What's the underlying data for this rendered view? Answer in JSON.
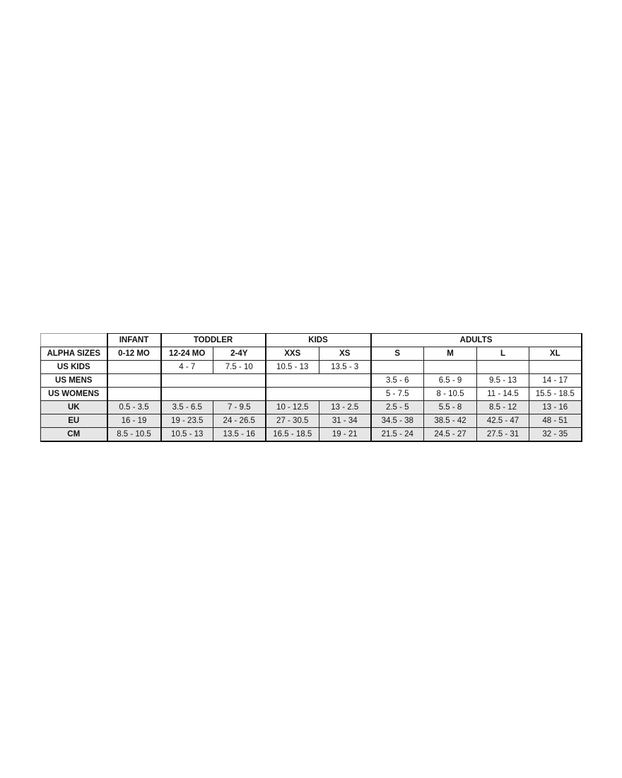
{
  "size_chart": {
    "groups": [
      {
        "label": "",
        "span": 1
      },
      {
        "label": "INFANT",
        "span": 1
      },
      {
        "label": "TODDLER",
        "span": 2
      },
      {
        "label": "KIDS",
        "span": 2
      },
      {
        "label": "ADULTS",
        "span": 4
      }
    ],
    "rows": [
      {
        "label": "ALPHA SIZES",
        "header": true,
        "cells": [
          {
            "text": "0-12 MO",
            "span": 1
          },
          {
            "text": "12-24 MO",
            "span": 1
          },
          {
            "text": "2-4Y",
            "span": 1
          },
          {
            "text": "XXS",
            "span": 1
          },
          {
            "text": "XS",
            "span": 1
          },
          {
            "text": "S",
            "span": 1
          },
          {
            "text": "M",
            "span": 1
          },
          {
            "text": "L",
            "span": 1
          },
          {
            "text": "XL",
            "span": 1
          }
        ]
      },
      {
        "label": "US KIDS",
        "cells": [
          {
            "text": "",
            "span": 1
          },
          {
            "text": "4 - 7",
            "span": 1
          },
          {
            "text": "7.5 - 10",
            "span": 1
          },
          {
            "text": "10.5 - 13",
            "span": 1
          },
          {
            "text": "13.5 - 3",
            "span": 1
          },
          {
            "text": "",
            "span": 1
          },
          {
            "text": "",
            "span": 1
          },
          {
            "text": "",
            "span": 1
          },
          {
            "text": "",
            "span": 1
          }
        ]
      },
      {
        "label": "US MENS",
        "cells": [
          {
            "text": "",
            "span": 1
          },
          {
            "text": "",
            "span": 2
          },
          {
            "text": "",
            "span": 2
          },
          {
            "text": "3.5 - 6",
            "span": 1
          },
          {
            "text": "6.5 - 9",
            "span": 1
          },
          {
            "text": "9.5 - 13",
            "span": 1
          },
          {
            "text": "14 - 17",
            "span": 1
          }
        ]
      },
      {
        "label": "US WOMENS",
        "cells": [
          {
            "text": "",
            "span": 1
          },
          {
            "text": "",
            "span": 2
          },
          {
            "text": "",
            "span": 2
          },
          {
            "text": "5 - 7.5",
            "span": 1
          },
          {
            "text": "8 - 10.5",
            "span": 1
          },
          {
            "text": "11 - 14.5",
            "span": 1
          },
          {
            "text": "15.5 - 18.5",
            "span": 1
          }
        ]
      },
      {
        "label": "UK",
        "gray": true,
        "cells": [
          {
            "text": "0.5 - 3.5",
            "span": 1
          },
          {
            "text": "3.5 - 6.5",
            "span": 1
          },
          {
            "text": "7 - 9.5",
            "span": 1
          },
          {
            "text": "10 - 12.5",
            "span": 1
          },
          {
            "text": "13 - 2.5",
            "span": 1
          },
          {
            "text": "2.5 - 5",
            "span": 1
          },
          {
            "text": "5.5 - 8",
            "span": 1
          },
          {
            "text": "8.5 - 12",
            "span": 1
          },
          {
            "text": "13 - 16",
            "span": 1
          }
        ]
      },
      {
        "label": "EU",
        "gray": true,
        "cells": [
          {
            "text": "16 - 19",
            "span": 1
          },
          {
            "text": "19 - 23.5",
            "span": 1
          },
          {
            "text": "24 - 26.5",
            "span": 1
          },
          {
            "text": "27 - 30.5",
            "span": 1
          },
          {
            "text": "31 - 34",
            "span": 1
          },
          {
            "text": "34.5 - 38",
            "span": 1
          },
          {
            "text": "38.5 - 42",
            "span": 1
          },
          {
            "text": "42.5 - 47",
            "span": 1
          },
          {
            "text": "48 - 51",
            "span": 1
          }
        ]
      },
      {
        "label": "CM",
        "gray": true,
        "cells": [
          {
            "text": "8.5 - 10.5",
            "span": 1
          },
          {
            "text": "10.5 - 13",
            "span": 1
          },
          {
            "text": "13.5 - 16",
            "span": 1
          },
          {
            "text": "16.5 - 18.5",
            "span": 1
          },
          {
            "text": "19 - 21",
            "span": 1
          },
          {
            "text": "21.5 - 24",
            "span": 1
          },
          {
            "text": "24.5 - 27",
            "span": 1
          },
          {
            "text": "27.5 - 31",
            "span": 1
          },
          {
            "text": "32 - 35",
            "span": 1
          }
        ]
      }
    ],
    "colors": {
      "shaded_row": "#e6e6e6",
      "border": "#111111"
    }
  }
}
